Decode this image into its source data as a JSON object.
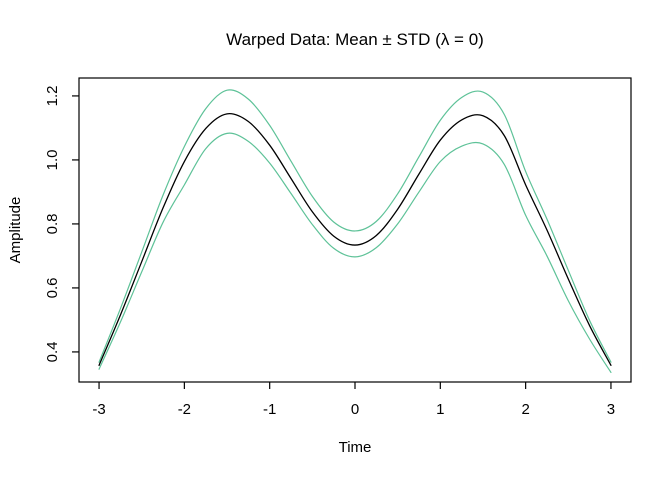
{
  "title": "Warped Data: Mean ± STD (λ = 0)",
  "colors": {
    "mean_line": "#000000",
    "std_band_line": "#5EC298",
    "axis": "#000000",
    "background": "#FFFFFF"
  },
  "axes": {
    "x": {
      "label": "Time",
      "tick_values": [
        -3,
        -2,
        -1,
        0,
        1,
        2,
        3
      ],
      "tick_labels": [
        "-3",
        "-2",
        "-1",
        "0",
        "1",
        "2",
        "3"
      ],
      "range": [
        -3.235,
        3.235
      ]
    },
    "y": {
      "label": "Amplitude",
      "tick_values": [
        0.4,
        0.6,
        0.8,
        1.0,
        1.2
      ],
      "tick_labels": [
        "0.4",
        "0.6",
        "0.8",
        "1.0",
        "1.2"
      ],
      "range": [
        0.306,
        1.256
      ]
    }
  },
  "chart_data": {
    "type": "line",
    "title": "Warped Data: Mean ± STD (λ = 0)",
    "xlabel": "Time",
    "ylabel": "Amplitude",
    "xlim": [
      -3.235,
      3.235
    ],
    "ylim": [
      0.306,
      1.256
    ],
    "grid": false,
    "legend": null,
    "x": [
      -3,
      -2.75,
      -2.5,
      -2.25,
      -2,
      -1.75,
      -1.5,
      -1.25,
      -1,
      -0.75,
      -0.5,
      -0.25,
      0,
      0.25,
      0.5,
      0.75,
      1,
      1.25,
      1.5,
      1.75,
      2,
      2.25,
      2.5,
      2.75,
      3
    ],
    "series": [
      {
        "name": "mean",
        "color": "#000000",
        "stroke_width": 1.3,
        "values": [
          0.358,
          0.515,
          0.682,
          0.85,
          0.995,
          1.098,
          1.144,
          1.12,
          1.046,
          0.942,
          0.838,
          0.762,
          0.734,
          0.764,
          0.846,
          0.956,
          1.062,
          1.125,
          1.138,
          1.076,
          0.922,
          0.781,
          0.628,
          0.482,
          0.358
        ]
      },
      {
        "name": "mean_plus_std",
        "color": "#5EC298",
        "stroke_width": 1.2,
        "values": [
          0.368,
          0.535,
          0.712,
          0.89,
          1.042,
          1.16,
          1.218,
          1.19,
          1.108,
          0.996,
          0.886,
          0.806,
          0.778,
          0.808,
          0.894,
          1.01,
          1.124,
          1.195,
          1.212,
          1.142,
          0.964,
          0.815,
          0.655,
          0.498,
          0.368
        ]
      },
      {
        "name": "mean_minus_std",
        "color": "#5EC298",
        "stroke_width": 1.2,
        "values": [
          0.346,
          0.493,
          0.65,
          0.805,
          0.922,
          1.035,
          1.083,
          1.058,
          0.99,
          0.895,
          0.798,
          0.724,
          0.697,
          0.726,
          0.8,
          0.9,
          0.995,
          1.043,
          1.05,
          0.986,
          0.827,
          0.7,
          0.56,
          0.44,
          0.336
        ]
      }
    ]
  }
}
